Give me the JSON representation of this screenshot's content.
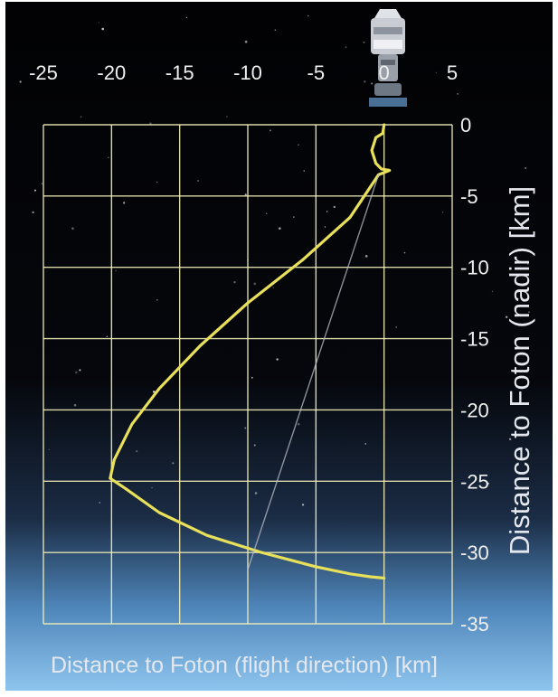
{
  "chart_data": {
    "type": "line",
    "xlabel": "Distance to Foton (flight direction) [km]",
    "ylabel": "Distance to Foton (nadir) [km]",
    "xlim": [
      -25,
      5
    ],
    "ylim": [
      -35,
      0
    ],
    "x_ticks": [
      "-25",
      "-20",
      "-15",
      "-10",
      "-5",
      "0",
      "5"
    ],
    "y_ticks": [
      "0",
      "-5",
      "-10",
      "-15",
      "-20",
      "-25",
      "-30",
      "-35"
    ],
    "grid": true,
    "series": [
      {
        "name": "",
        "color": "#e8e05a",
        "x": [
          0,
          -0.1,
          -0.6,
          -0.9,
          -0.6,
          -0.2,
          0.4,
          -0.4,
          -2.5,
          -6,
          -10,
          -13.5,
          -16.5,
          -18.5,
          -19.8,
          -20.1,
          -19.0,
          -16.5,
          -13.0,
          -9.0,
          -5.0,
          -2.5,
          -1.0,
          0
        ],
        "y": [
          0,
          -0.6,
          -0.9,
          -1.8,
          -2.7,
          -3.1,
          -3.2,
          -3.5,
          -6.5,
          -9.5,
          -12.5,
          -15.5,
          -18.5,
          -21,
          -23.5,
          -24.8,
          -25.5,
          -27.2,
          -28.8,
          -30.0,
          -31.0,
          -31.5,
          -31.7,
          -31.8
        ]
      },
      {
        "name": "",
        "color": "#b8bcc4",
        "x": [
          -0.4,
          -10
        ],
        "y": [
          -3.5,
          -31.2
        ]
      }
    ]
  }
}
